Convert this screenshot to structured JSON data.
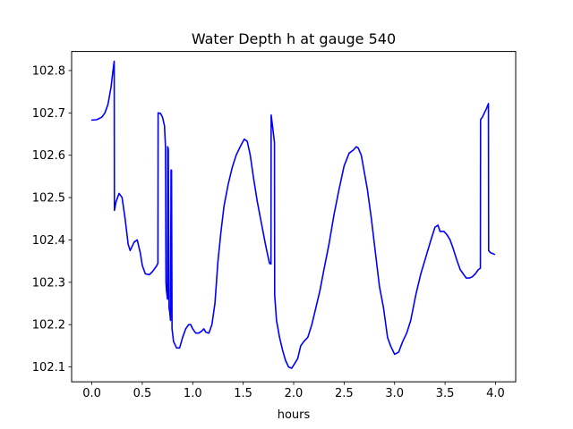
{
  "chart_data": {
    "type": "line",
    "title": "Water Depth h at gauge 540",
    "xlabel": "hours",
    "ylabel": "",
    "xlim": [
      -0.2,
      4.2
    ],
    "ylim": [
      102.065,
      102.845
    ],
    "xticks": [
      0.0,
      0.5,
      1.0,
      1.5,
      2.0,
      2.5,
      3.0,
      3.5,
      4.0
    ],
    "xtick_labels": [
      "0.0",
      "0.5",
      "1.0",
      "1.5",
      "2.0",
      "2.5",
      "3.0",
      "3.5",
      "4.0"
    ],
    "yticks": [
      102.1,
      102.2,
      102.3,
      102.4,
      102.5,
      102.6,
      102.7,
      102.8
    ],
    "ytick_labels": [
      "102.1",
      "102.2",
      "102.3",
      "102.4",
      "102.5",
      "102.6",
      "102.7",
      "102.8"
    ],
    "grid": false,
    "series": [
      {
        "color": "#0000ff",
        "x": [
          0.0,
          0.05,
          0.1,
          0.13,
          0.16,
          0.19,
          0.21,
          0.222,
          0.224,
          0.24,
          0.27,
          0.3,
          0.33,
          0.36,
          0.38,
          0.42,
          0.45,
          0.48,
          0.5,
          0.53,
          0.57,
          0.6,
          0.64,
          0.655,
          0.657,
          0.68,
          0.7,
          0.72,
          0.73,
          0.735,
          0.74,
          0.75,
          0.752,
          0.758,
          0.765,
          0.772,
          0.78,
          0.785,
          0.79,
          0.795,
          0.8,
          0.81,
          0.84,
          0.87,
          0.9,
          0.93,
          0.96,
          0.98,
          1.0,
          1.03,
          1.06,
          1.09,
          1.11,
          1.13,
          1.16,
          1.19,
          1.22,
          1.25,
          1.28,
          1.31,
          1.35,
          1.39,
          1.43,
          1.47,
          1.51,
          1.54,
          1.57,
          1.6,
          1.64,
          1.68,
          1.72,
          1.76,
          1.775,
          1.777,
          1.79,
          1.81,
          1.812,
          1.83,
          1.86,
          1.89,
          1.92,
          1.95,
          1.98,
          2.01,
          2.04,
          2.07,
          2.1,
          2.14,
          2.18,
          2.22,
          2.26,
          2.3,
          2.35,
          2.4,
          2.45,
          2.5,
          2.55,
          2.59,
          2.62,
          2.64,
          2.67,
          2.7,
          2.73,
          2.77,
          2.81,
          2.85,
          2.89,
          2.93,
          2.96,
          3.0,
          3.04,
          3.08,
          3.12,
          3.16,
          3.21,
          3.26,
          3.31,
          3.36,
          3.4,
          3.43,
          3.45,
          3.47,
          3.49,
          3.52,
          3.55,
          3.58,
          3.62,
          3.65,
          3.68,
          3.71,
          3.74,
          3.77,
          3.8,
          3.83,
          3.85,
          3.852,
          3.87,
          3.89,
          3.91,
          3.93,
          3.932,
          3.95,
          3.97,
          3.99
        ],
        "y": [
          102.683,
          102.684,
          102.69,
          102.7,
          102.72,
          102.76,
          102.8,
          102.822,
          102.47,
          102.49,
          102.51,
          102.5,
          102.45,
          102.39,
          102.375,
          102.395,
          102.4,
          102.37,
          102.34,
          102.32,
          102.318,
          102.325,
          102.338,
          102.345,
          102.7,
          102.699,
          102.69,
          102.67,
          102.62,
          102.3,
          102.28,
          102.26,
          102.62,
          102.615,
          102.24,
          102.23,
          102.21,
          102.565,
          102.565,
          102.19,
          102.18,
          102.16,
          102.145,
          102.145,
          102.17,
          102.19,
          102.2,
          102.2,
          102.19,
          102.18,
          102.18,
          102.185,
          102.19,
          102.182,
          102.18,
          102.2,
          102.25,
          102.35,
          102.42,
          102.48,
          102.53,
          102.57,
          102.6,
          102.62,
          102.638,
          102.633,
          102.6,
          102.55,
          102.49,
          102.44,
          102.39,
          102.345,
          102.343,
          102.695,
          102.67,
          102.63,
          102.27,
          102.21,
          102.17,
          102.14,
          102.115,
          102.1,
          102.097,
          102.108,
          102.12,
          102.15,
          102.16,
          102.17,
          102.2,
          102.24,
          102.28,
          102.33,
          102.39,
          102.46,
          102.52,
          102.575,
          102.605,
          102.612,
          102.62,
          102.617,
          102.6,
          102.56,
          102.52,
          102.45,
          102.37,
          102.29,
          102.24,
          102.17,
          102.15,
          102.13,
          102.135,
          102.16,
          102.18,
          102.21,
          102.27,
          102.32,
          102.36,
          102.4,
          102.43,
          102.435,
          102.42,
          102.42,
          102.42,
          102.412,
          102.4,
          102.38,
          102.35,
          102.33,
          102.32,
          102.31,
          102.31,
          102.313,
          102.32,
          102.33,
          102.333,
          102.684,
          102.69,
          102.7,
          102.71,
          102.722,
          102.375,
          102.37,
          102.368,
          102.366
        ]
      }
    ]
  }
}
